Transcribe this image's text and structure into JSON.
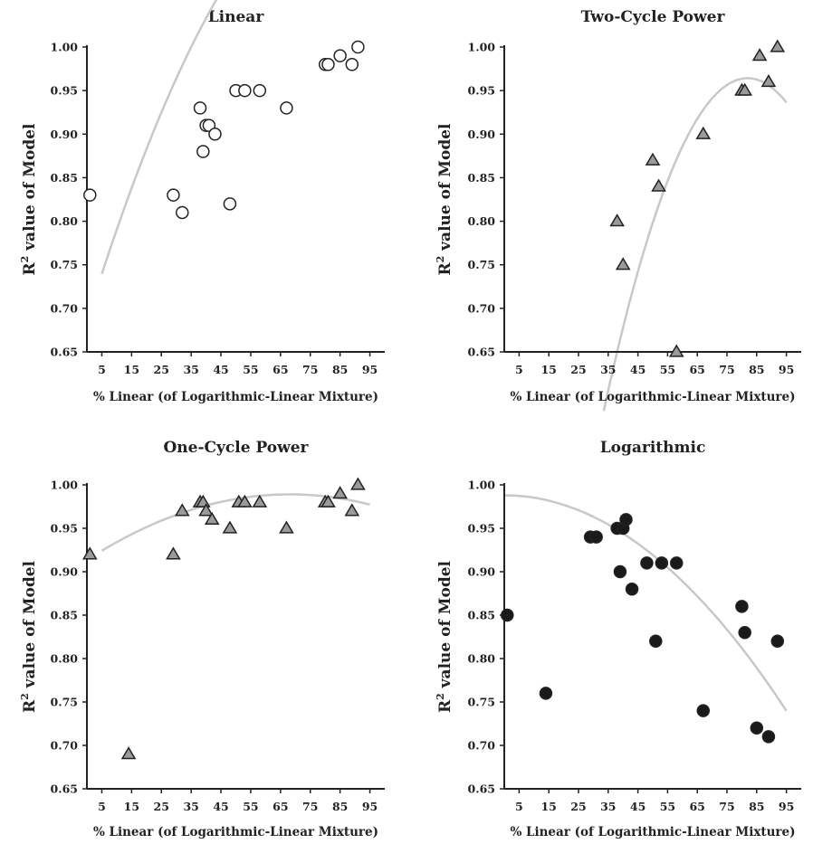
{
  "chart_data": [
    {
      "type": "scatter",
      "title": "Linear",
      "xlabel": "% Linear (of Logarithmic-Linear Mixture)",
      "ylabel_main": "R",
      "ylabel_sup": "2",
      "ylabel_rest": " value of Model",
      "xlim": [
        0,
        100
      ],
      "ylim": [
        0.65,
        1.0
      ],
      "xticks": [
        "5",
        "15",
        "25",
        "35",
        "45",
        "55",
        "65",
        "75",
        "85",
        "95"
      ],
      "yticks": [
        "0.65",
        "0.70",
        "0.75",
        "0.80",
        "0.85",
        "0.90",
        "0.95",
        "1.00"
      ],
      "marker": "circle-open",
      "marker_fill": "#ffffff",
      "trend": {
        "from": 5,
        "to": 95,
        "coef": [
          0.686,
          0.01102,
          -5.85e-05
        ]
      },
      "points": [
        [
          1,
          0.83
        ],
        [
          29,
          0.83
        ],
        [
          32,
          0.81
        ],
        [
          38,
          0.93
        ],
        [
          39,
          0.88
        ],
        [
          40,
          0.91
        ],
        [
          41,
          0.91
        ],
        [
          43,
          0.9
        ],
        [
          48,
          0.82
        ],
        [
          50,
          0.95
        ],
        [
          53,
          0.95
        ],
        [
          58,
          0.95
        ],
        [
          67,
          0.93
        ],
        [
          80,
          0.98
        ],
        [
          81,
          0.98
        ],
        [
          85,
          0.99
        ],
        [
          89,
          0.98
        ],
        [
          91,
          1.0
        ]
      ]
    },
    {
      "type": "scatter",
      "title": "Two-Cycle Power",
      "xlabel": "% Linear (of Logarithmic-Linear Mixture)",
      "ylabel_main": "R",
      "ylabel_sup": "2",
      "ylabel_rest": " value of Model",
      "xlim": [
        0,
        100
      ],
      "ylim": [
        0.65,
        1.0
      ],
      "xticks": [
        "5",
        "15",
        "25",
        "35",
        "45",
        "55",
        "65",
        "75",
        "85",
        "95"
      ],
      "yticks": [
        "0.65",
        "0.70",
        "0.75",
        "0.80",
        "0.85",
        "0.90",
        "0.95",
        "1.00"
      ],
      "marker": "triangle",
      "marker_fill": "#9a9a9a",
      "trend": {
        "from": 33.5,
        "to": 95,
        "coef": [
          -0.129,
          0.02669,
          -0.0001629
        ]
      },
      "points": [
        [
          38,
          0.8
        ],
        [
          40,
          0.75
        ],
        [
          50,
          0.87
        ],
        [
          52,
          0.84
        ],
        [
          58,
          0.65
        ],
        [
          67,
          0.9
        ],
        [
          80,
          0.95
        ],
        [
          81,
          0.95
        ],
        [
          86,
          0.99
        ],
        [
          89,
          0.96
        ],
        [
          92,
          1.0
        ]
      ]
    },
    {
      "type": "scatter",
      "title": "One-Cycle Power",
      "xlabel": "% Linear (of Logarithmic-Linear Mixture)",
      "ylabel_main": "R",
      "ylabel_sup": "2",
      "ylabel_rest": " value of Model",
      "xlim": [
        0,
        100
      ],
      "ylim": [
        0.65,
        1.0
      ],
      "xticks": [
        "5",
        "15",
        "25",
        "35",
        "45",
        "55",
        "65",
        "75",
        "85",
        "95"
      ],
      "yticks": [
        "0.65",
        "0.70",
        "0.75",
        "0.80",
        "0.85",
        "0.90",
        "0.95",
        "1.00"
      ],
      "marker": "triangle",
      "marker_fill": "#9a9a9a",
      "trend": {
        "from": 5,
        "to": 95,
        "coef": [
          0.9135,
          0.00222,
          -1.63e-05
        ]
      },
      "points": [
        [
          1,
          0.92
        ],
        [
          14,
          0.69
        ],
        [
          29,
          0.92
        ],
        [
          32,
          0.97
        ],
        [
          38,
          0.98
        ],
        [
          39,
          0.98
        ],
        [
          40,
          0.97
        ],
        [
          42,
          0.96
        ],
        [
          48,
          0.95
        ],
        [
          51,
          0.98
        ],
        [
          53,
          0.98
        ],
        [
          58,
          0.98
        ],
        [
          67,
          0.95
        ],
        [
          80,
          0.98
        ],
        [
          81,
          0.98
        ],
        [
          85,
          0.99
        ],
        [
          89,
          0.97
        ],
        [
          91,
          1.0
        ]
      ]
    },
    {
      "type": "scatter",
      "title": "Logarithmic",
      "xlabel": "% Linear (of Logarithmic-Linear Mixture)",
      "ylabel_main": "R",
      "ylabel_sup": "2",
      "ylabel_rest": " value of Model",
      "xlim": [
        0,
        100
      ],
      "ylim": [
        0.65,
        1.0
      ],
      "xticks": [
        "5",
        "15",
        "25",
        "35",
        "45",
        "55",
        "65",
        "75",
        "85",
        "95"
      ],
      "yticks": [
        "0.65",
        "0.70",
        "0.75",
        "0.80",
        "0.85",
        "0.90",
        "0.95",
        "1.00"
      ],
      "marker": "circle-filled",
      "marker_fill": "#1a1a1a",
      "trend": {
        "from": 0,
        "to": 95,
        "coef": [
          0.988,
          0.0,
          -2.75e-05
        ]
      },
      "points": [
        [
          1,
          0.85
        ],
        [
          14,
          0.76
        ],
        [
          29,
          0.94
        ],
        [
          31,
          0.94
        ],
        [
          38,
          0.95
        ],
        [
          39,
          0.9
        ],
        [
          40,
          0.95
        ],
        [
          41,
          0.96
        ],
        [
          43,
          0.88
        ],
        [
          48,
          0.91
        ],
        [
          51,
          0.82
        ],
        [
          53,
          0.91
        ],
        [
          58,
          0.91
        ],
        [
          67,
          0.74
        ],
        [
          80,
          0.86
        ],
        [
          81,
          0.83
        ],
        [
          85,
          0.72
        ],
        [
          89,
          0.71
        ],
        [
          92,
          0.82
        ]
      ]
    }
  ]
}
